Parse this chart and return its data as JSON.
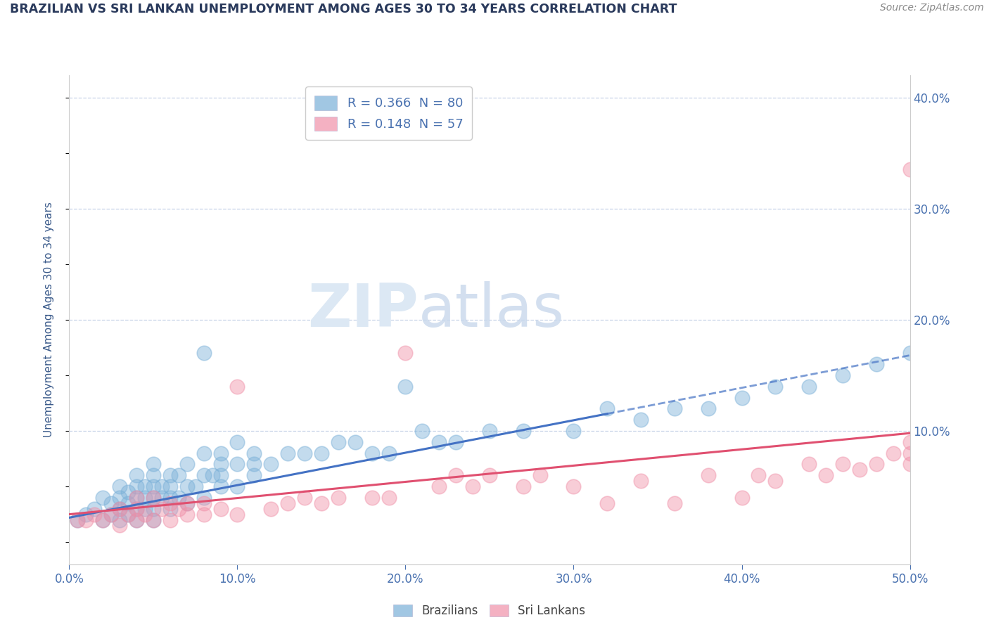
{
  "title": "BRAZILIAN VS SRI LANKAN UNEMPLOYMENT AMONG AGES 30 TO 34 YEARS CORRELATION CHART",
  "source": "Source: ZipAtlas.com",
  "ylabel_left": "Unemployment Among Ages 30 to 34 years",
  "xlim": [
    0.0,
    0.5
  ],
  "ylim": [
    -0.02,
    0.42
  ],
  "legend_r1": "R = 0.366  N = 80",
  "legend_r2": "R = 0.148  N = 57",
  "brazil_color": "#7ab0d8",
  "srilanka_color": "#f090a8",
  "brazil_line_color": "#4472c4",
  "srilanka_line_color": "#e05070",
  "background_color": "#ffffff",
  "grid_color": "#c8d4e8",
  "title_color": "#2a3a5c",
  "axis_label_color": "#3a5a8a",
  "tick_label_color": "#4a72b0",
  "watermark_zip": "ZIP",
  "watermark_atlas": "atlas",
  "watermark_color": "#dce8f4",
  "brazil_dots_x": [
    0.005,
    0.01,
    0.015,
    0.02,
    0.02,
    0.025,
    0.025,
    0.03,
    0.03,
    0.03,
    0.03,
    0.035,
    0.035,
    0.035,
    0.04,
    0.04,
    0.04,
    0.04,
    0.04,
    0.045,
    0.045,
    0.045,
    0.05,
    0.05,
    0.05,
    0.05,
    0.05,
    0.05,
    0.055,
    0.055,
    0.06,
    0.06,
    0.06,
    0.06,
    0.065,
    0.065,
    0.07,
    0.07,
    0.07,
    0.075,
    0.08,
    0.08,
    0.08,
    0.08,
    0.085,
    0.09,
    0.09,
    0.09,
    0.09,
    0.1,
    0.1,
    0.1,
    0.11,
    0.11,
    0.11,
    0.12,
    0.13,
    0.14,
    0.15,
    0.16,
    0.17,
    0.18,
    0.19,
    0.2,
    0.21,
    0.22,
    0.23,
    0.25,
    0.27,
    0.3,
    0.32,
    0.34,
    0.36,
    0.38,
    0.4,
    0.42,
    0.44,
    0.46,
    0.48,
    0.5
  ],
  "brazil_dots_y": [
    0.02,
    0.025,
    0.03,
    0.02,
    0.04,
    0.025,
    0.035,
    0.02,
    0.03,
    0.04,
    0.05,
    0.025,
    0.035,
    0.045,
    0.02,
    0.03,
    0.04,
    0.05,
    0.06,
    0.03,
    0.04,
    0.05,
    0.02,
    0.03,
    0.04,
    0.05,
    0.06,
    0.07,
    0.04,
    0.05,
    0.03,
    0.04,
    0.05,
    0.06,
    0.04,
    0.06,
    0.035,
    0.05,
    0.07,
    0.05,
    0.04,
    0.06,
    0.08,
    0.17,
    0.06,
    0.05,
    0.06,
    0.07,
    0.08,
    0.05,
    0.07,
    0.09,
    0.06,
    0.07,
    0.08,
    0.07,
    0.08,
    0.08,
    0.08,
    0.09,
    0.09,
    0.08,
    0.08,
    0.14,
    0.1,
    0.09,
    0.09,
    0.1,
    0.1,
    0.1,
    0.12,
    0.11,
    0.12,
    0.12,
    0.13,
    0.14,
    0.14,
    0.15,
    0.16,
    0.17
  ],
  "srilanka_dots_x": [
    0.005,
    0.01,
    0.015,
    0.02,
    0.025,
    0.03,
    0.03,
    0.035,
    0.04,
    0.04,
    0.04,
    0.045,
    0.05,
    0.05,
    0.055,
    0.06,
    0.06,
    0.065,
    0.07,
    0.07,
    0.08,
    0.08,
    0.09,
    0.1,
    0.1,
    0.12,
    0.13,
    0.14,
    0.15,
    0.16,
    0.18,
    0.19,
    0.2,
    0.22,
    0.23,
    0.24,
    0.25,
    0.27,
    0.28,
    0.3,
    0.32,
    0.34,
    0.36,
    0.38,
    0.4,
    0.41,
    0.42,
    0.44,
    0.45,
    0.46,
    0.47,
    0.48,
    0.49,
    0.5,
    0.5,
    0.5,
    0.5
  ],
  "srilanka_dots_y": [
    0.02,
    0.02,
    0.025,
    0.02,
    0.025,
    0.015,
    0.03,
    0.025,
    0.02,
    0.03,
    0.04,
    0.025,
    0.02,
    0.04,
    0.03,
    0.02,
    0.035,
    0.03,
    0.025,
    0.035,
    0.025,
    0.035,
    0.03,
    0.025,
    0.14,
    0.03,
    0.035,
    0.04,
    0.035,
    0.04,
    0.04,
    0.04,
    0.17,
    0.05,
    0.06,
    0.05,
    0.06,
    0.05,
    0.06,
    0.05,
    0.035,
    0.055,
    0.035,
    0.06,
    0.04,
    0.06,
    0.055,
    0.07,
    0.06,
    0.07,
    0.065,
    0.07,
    0.08,
    0.09,
    0.335,
    0.07,
    0.08
  ],
  "brazil_trend_x0": 0.0,
  "brazil_trend_y0": 0.022,
  "brazil_trend_x1": 0.5,
  "brazil_trend_y1": 0.168,
  "srilanka_trend_x0": 0.0,
  "srilanka_trend_y0": 0.025,
  "srilanka_trend_x1": 0.5,
  "srilanka_trend_y1": 0.098
}
